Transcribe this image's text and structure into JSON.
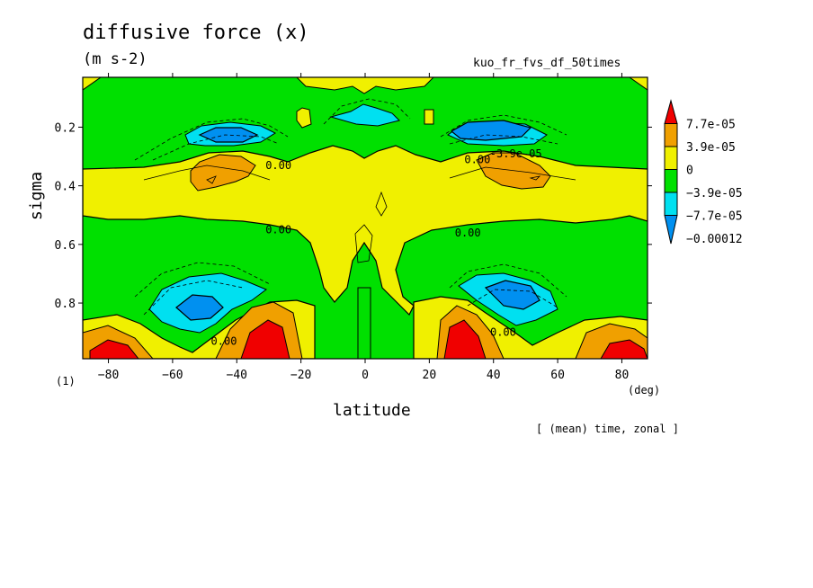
{
  "title": "diffusive force (x)",
  "units": "(m s-2)",
  "run_name": "kuo_fr_fvs_df_50times",
  "frame_label": "(1)",
  "footer": "[ (mean) time, zonal ]",
  "chart_data": {
    "type": "heatmap",
    "title": "diffusive force (x)",
    "subtitle": "(m s-2)",
    "xlabel": "latitude",
    "xunit": "(deg)",
    "ylabel": "sigma",
    "xlim": [
      -88,
      88
    ],
    "ylim": [
      0.03,
      0.99
    ],
    "y_inverted": true,
    "x_ticks": [
      -80,
      -60,
      -40,
      -20,
      0,
      20,
      40,
      60,
      80
    ],
    "y_ticks": [
      0.2,
      0.4,
      0.6,
      0.8
    ],
    "contour_labels": [
      {
        "text": "0.00",
        "x": -27,
        "y": 0.33
      },
      {
        "text": "0.00",
        "x": -27,
        "y": 0.55
      },
      {
        "text": "0.00",
        "x": 32,
        "y": 0.56
      },
      {
        "text": "0.00",
        "x": 35,
        "y": 0.31
      },
      {
        "text": "-3.9e-05",
        "x": 47,
        "y": 0.29
      },
      {
        "text": "0.00",
        "x": -44,
        "y": 0.93
      },
      {
        "text": "0.00",
        "x": 43,
        "y": 0.9
      }
    ],
    "colorbar": {
      "levels": [
        "7.7e-05",
        "3.9e-05",
        "0",
        "−3.9e-05",
        "−7.7e-05",
        "−0.00012"
      ],
      "colors": [
        "#f00000",
        "#f0a000",
        "#f0f000",
        "#00e000",
        "#00e0f0",
        "#0090f0"
      ]
    },
    "colors": {
      "c_red": "#f00000",
      "c_orange": "#f0a000",
      "c_yellow": "#f0f000",
      "c_green": "#00e000",
      "c_cyan": "#00e0f0",
      "c_blue": "#0090f0"
    }
  }
}
